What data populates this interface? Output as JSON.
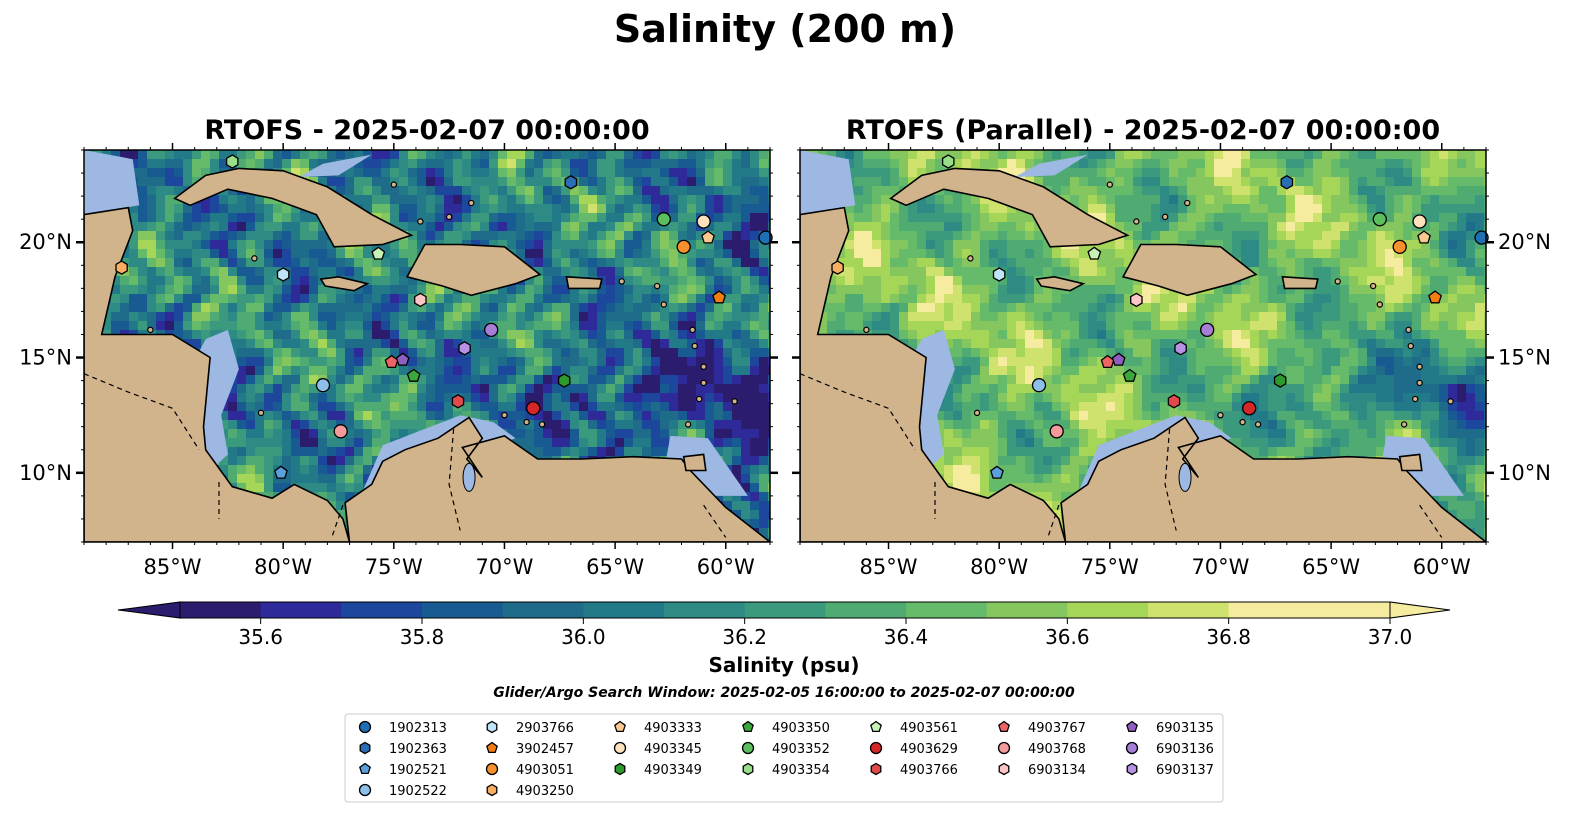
{
  "suptitle": "Salinity (200 m)",
  "window_text": "Glider/Argo Search Window: 2025-02-05 16:00:00 to 2025-02-07 00:00:00",
  "colors": {
    "land": "#d2b48c",
    "shelf": "#9cb8e3",
    "deep_low": "#291a69",
    "colormap": [
      "#2b1c6e",
      "#2e2a9a",
      "#1d479c",
      "#185b92",
      "#1f6b8a",
      "#227a89",
      "#2d8a84",
      "#3b9a7d",
      "#4fab72",
      "#66bb6a",
      "#85c75e",
      "#a6d657",
      "#cfe26e",
      "#f6eca0"
    ]
  },
  "chart_data": [
    {
      "type": "heatmap",
      "title": "RTOFS - 2025-02-07 00:00:00",
      "variable": "salinity at 200 m",
      "x_range": [
        -89,
        -58
      ],
      "y_range": [
        7,
        24
      ],
      "xticks": [
        "85°W",
        "80°W",
        "75°W",
        "70°W",
        "65°W",
        "60°W"
      ],
      "yticks": [
        "20°N",
        "15°N",
        "10°N"
      ],
      "ytick_side": "left",
      "field_bias": -0.15
    },
    {
      "type": "heatmap",
      "title": "RTOFS (Parallel) - 2025-02-07 00:00:00",
      "variable": "salinity at 200 m",
      "x_range": [
        -89,
        -58
      ],
      "y_range": [
        7,
        24
      ],
      "xticks": [
        "85°W",
        "80°W",
        "75°W",
        "70°W",
        "65°W",
        "60°W"
      ],
      "yticks": [
        "20°N",
        "15°N",
        "10°N"
      ],
      "ytick_side": "right",
      "field_bias": 0.25
    }
  ],
  "colorbar": {
    "levels": [
      35.5,
      35.6,
      35.7,
      35.8,
      35.9,
      36.0,
      36.1,
      36.2,
      36.3,
      36.4,
      36.5,
      36.6,
      36.7,
      36.8,
      36.9,
      37.0
    ],
    "tick_labels": [
      "35.6",
      "35.8",
      "36.0",
      "36.2",
      "36.4",
      "36.6",
      "36.8",
      "37.0"
    ],
    "label": "Salinity (psu)",
    "extend": "both"
  },
  "markers": [
    {
      "id": "1902313",
      "shape": "circle",
      "color": "#1f6fb4",
      "lon": -58.2,
      "lat": 20.2
    },
    {
      "id": "1902363",
      "shape": "hexagon",
      "color": "#2a6fb5",
      "lon": -67.0,
      "lat": 22.6
    },
    {
      "id": "1902521",
      "shape": "pentagon",
      "color": "#5aa1dc",
      "lon": -80.1,
      "lat": 10.0
    },
    {
      "id": "1902522",
      "shape": "circle",
      "color": "#8cc0ea",
      "lon": -78.2,
      "lat": 13.8
    },
    {
      "id": "2903766",
      "shape": "hexagon",
      "color": "#bfe3f7",
      "lon": -80.0,
      "lat": 18.6
    },
    {
      "id": "3902457",
      "shape": "pentagon",
      "color": "#f47d12",
      "lon": -60.3,
      "lat": 17.6
    },
    {
      "id": "4903051",
      "shape": "circle",
      "color": "#f7902d",
      "lon": -61.9,
      "lat": 19.8
    },
    {
      "id": "4903250",
      "shape": "hexagon",
      "color": "#f9ae62",
      "lon": -87.3,
      "lat": 18.9
    },
    {
      "id": "4903333",
      "shape": "pentagon",
      "color": "#fbc98f",
      "lon": -60.8,
      "lat": 20.2
    },
    {
      "id": "4903345",
      "shape": "circle",
      "color": "#fde2bd",
      "lon": -61.0,
      "lat": 20.9
    },
    {
      "id": "4903349",
      "shape": "hexagon",
      "color": "#2c9b2c",
      "lon": -67.3,
      "lat": 14.0
    },
    {
      "id": "4903350",
      "shape": "pentagon",
      "color": "#3aa83c",
      "lon": -74.1,
      "lat": 14.2
    },
    {
      "id": "4903352",
      "shape": "circle",
      "color": "#5bbf5e",
      "lon": -62.8,
      "lat": 21.0
    },
    {
      "id": "4903354",
      "shape": "hexagon",
      "color": "#98df8a",
      "lon": -82.3,
      "lat": 23.5
    },
    {
      "id": "4903561",
      "shape": "pentagon",
      "color": "#c6f2b5",
      "lon": -75.7,
      "lat": 19.5
    },
    {
      "id": "4903629",
      "shape": "circle",
      "color": "#d62728",
      "lon": -68.7,
      "lat": 12.8
    },
    {
      "id": "4903766",
      "shape": "hexagon",
      "color": "#e2494a",
      "lon": -72.1,
      "lat": 13.1
    },
    {
      "id": "4903767",
      "shape": "pentagon",
      "color": "#ec6464",
      "lon": -75.1,
      "lat": 14.8
    },
    {
      "id": "4903768",
      "shape": "circle",
      "color": "#f49a9a",
      "lon": -77.4,
      "lat": 11.8
    },
    {
      "id": "6903134",
      "shape": "hexagon",
      "color": "#fcc6c6",
      "lon": -73.8,
      "lat": 17.5
    },
    {
      "id": "6903135",
      "shape": "pentagon",
      "color": "#8e5fc0",
      "lon": -74.6,
      "lat": 14.9
    },
    {
      "id": "6903136",
      "shape": "circle",
      "color": "#a67ed6",
      "lon": -70.6,
      "lat": 16.2
    },
    {
      "id": "6903137",
      "shape": "hexagon",
      "color": "#b792e4",
      "lon": -71.8,
      "lat": 15.4
    }
  ]
}
